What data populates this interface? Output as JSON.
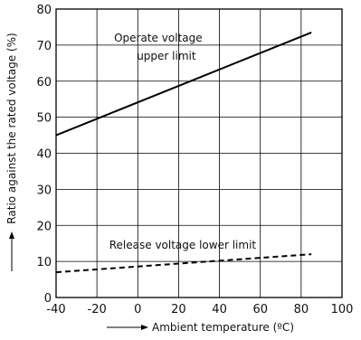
{
  "chart_data": {
    "type": "line",
    "xlabel": "Ambient temperature (ºC)",
    "ylabel": "Ratio against the rated voltage (%)",
    "xlim": [
      -40,
      100
    ],
    "ylim": [
      0,
      80
    ],
    "x_ticks": [
      -40,
      -20,
      0,
      20,
      40,
      60,
      80,
      100
    ],
    "y_ticks": [
      0,
      10,
      20,
      30,
      40,
      50,
      60,
      70,
      80
    ],
    "grid": true,
    "legend": "none",
    "series": [
      {
        "x": [
          -40,
          85
        ],
        "y": [
          45,
          73.5
        ],
        "line_style": "solid"
      },
      {
        "x": [
          -40,
          85
        ],
        "y": [
          7,
          12
        ],
        "line_style": "dashed"
      }
    ],
    "annotations": [
      {
        "text": "Operate voltage",
        "x": 10,
        "y": 71
      },
      {
        "text": "upper limit",
        "x": 14,
        "y": 66
      },
      {
        "text": "Release voltage lower limit",
        "x": 22,
        "y": 13.5
      }
    ]
  }
}
